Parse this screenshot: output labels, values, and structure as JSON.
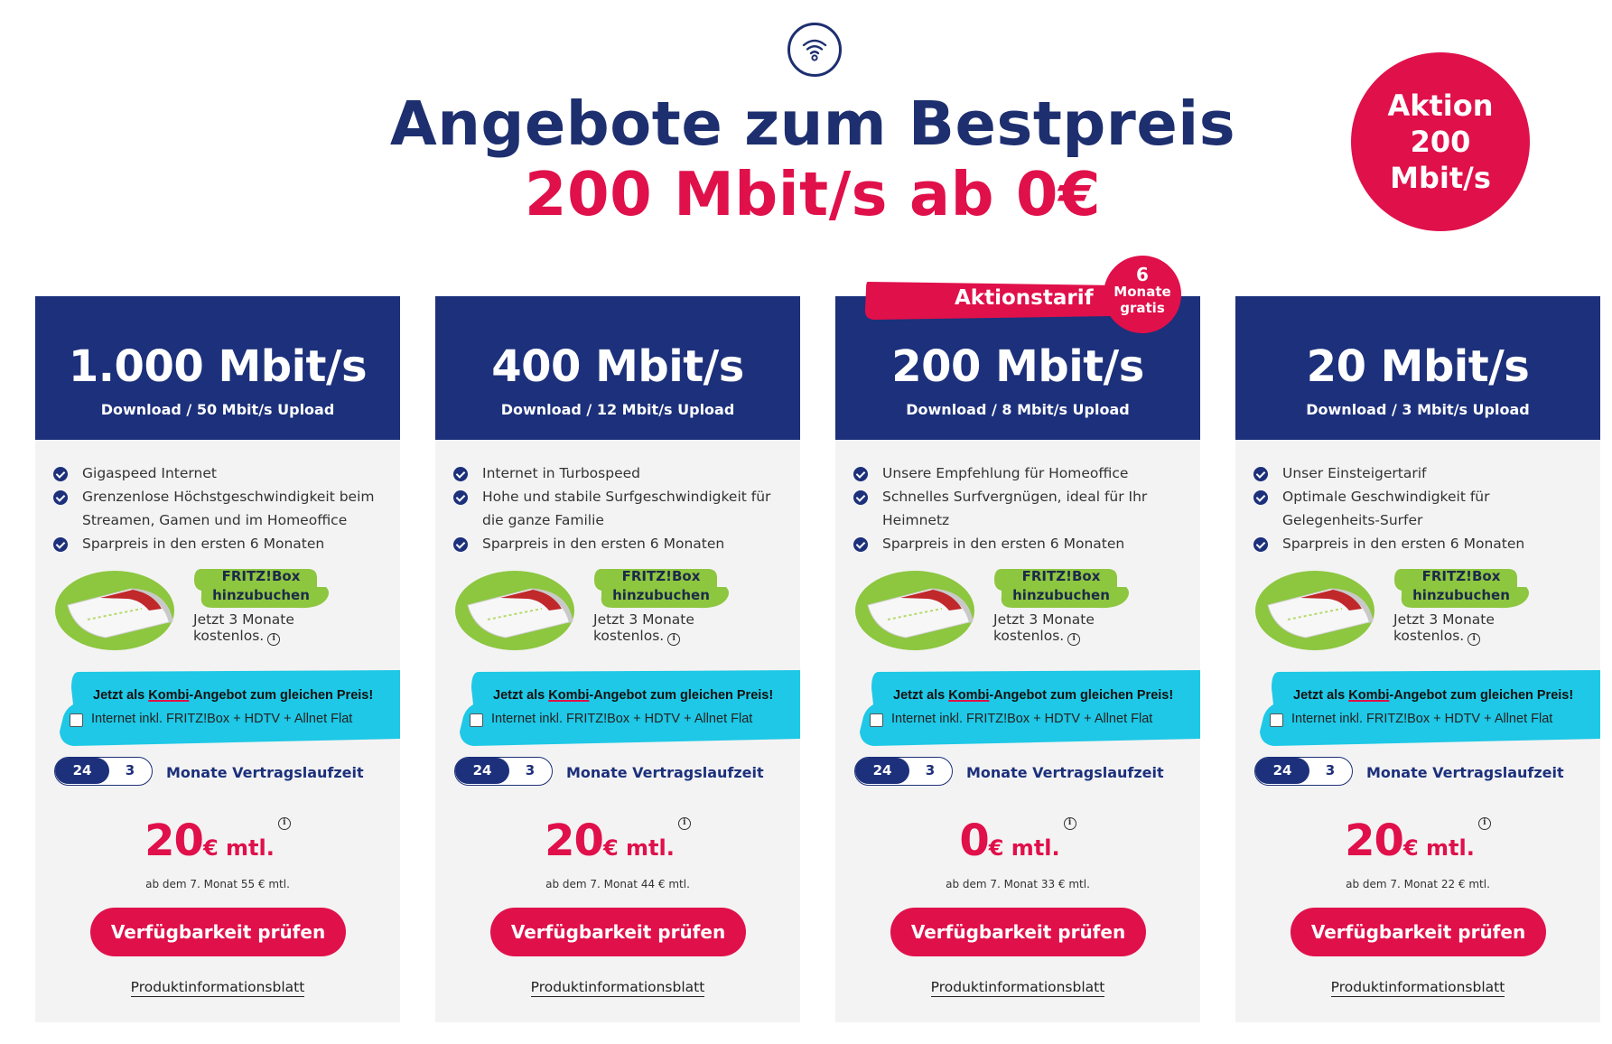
{
  "header": {
    "icon": "wifi-icon",
    "title": "Angebote zum Bestpreis",
    "subtitle": "200 Mbit/s ab 0€",
    "badge_line1": "Aktion",
    "badge_line2": "200",
    "badge_line3": "Mbit/s"
  },
  "highlight": {
    "ribbon": "Aktionstarif",
    "gratis_number": "6",
    "gratis_line2": "Monate",
    "gratis_line3": "gratis"
  },
  "colors": {
    "navy": "#1c307b",
    "brand_red": "#e0104a",
    "lime": "#8dc63f",
    "cyan": "#1ec8e6"
  },
  "common": {
    "fritz_line1": "FRITZ!Box",
    "fritz_line2": "hinzubuchen",
    "fritz_note_line1": "Jetzt 3 Monate",
    "fritz_note_line2": "kostenlos.",
    "kombi_pre": "Jetzt als ",
    "kombi_word": "Kombi",
    "kombi_post": "-Angebot zum gleichen Preis!",
    "kombi_option": "Internet inkl. FRITZ!Box + HDTV + Allnet Flat",
    "term_24": "24",
    "term_3": "3",
    "term_label": "Monate Vertragslaufzeit",
    "price_unit": "€ mtl.",
    "cta": "Verfügbarkeit prüfen",
    "pib": "Produktinformationsblatt",
    "info_glyph": "i"
  },
  "tariffs": [
    {
      "speed": "1.000 Mbit/s",
      "speed_sub": "Download / 50 Mbit/s Upload",
      "features": [
        "Gigaspeed Internet",
        "Grenzenlose Höchstgeschwindigkeit beim Streamen, Gamen und im Homeoffice",
        "Sparpreis in den ersten 6 Monaten"
      ],
      "price": "20",
      "after": "ab dem 7. Monat 55 € mtl."
    },
    {
      "speed": "400 Mbit/s",
      "speed_sub": "Download / 12 Mbit/s Upload",
      "features": [
        "Internet in Turbospeed",
        "Hohe und stabile Surfgeschwindigkeit für die ganze Familie",
        "Sparpreis in den ersten 6 Monaten"
      ],
      "price": "20",
      "after": "ab dem 7. Monat 44 € mtl."
    },
    {
      "speed": "200 Mbit/s",
      "speed_sub": "Download / 8 Mbit/s Upload",
      "features": [
        "Unsere Empfehlung für Homeoffice",
        "Schnelles Surfvergnügen, ideal für Ihr Heimnetz",
        "Sparpreis in den ersten 6 Monaten"
      ],
      "price": "0",
      "after": "ab dem 7. Monat 33 € mtl."
    },
    {
      "speed": "20 Mbit/s",
      "speed_sub": "Download / 3 Mbit/s Upload",
      "features": [
        "Unser Einsteigertarif",
        "Optimale Geschwindigkeit für Gelegenheits-Surfer",
        "Sparpreis in den ersten 6 Monaten"
      ],
      "price": "20",
      "after": "ab dem 7. Monat 22 € mtl."
    }
  ]
}
